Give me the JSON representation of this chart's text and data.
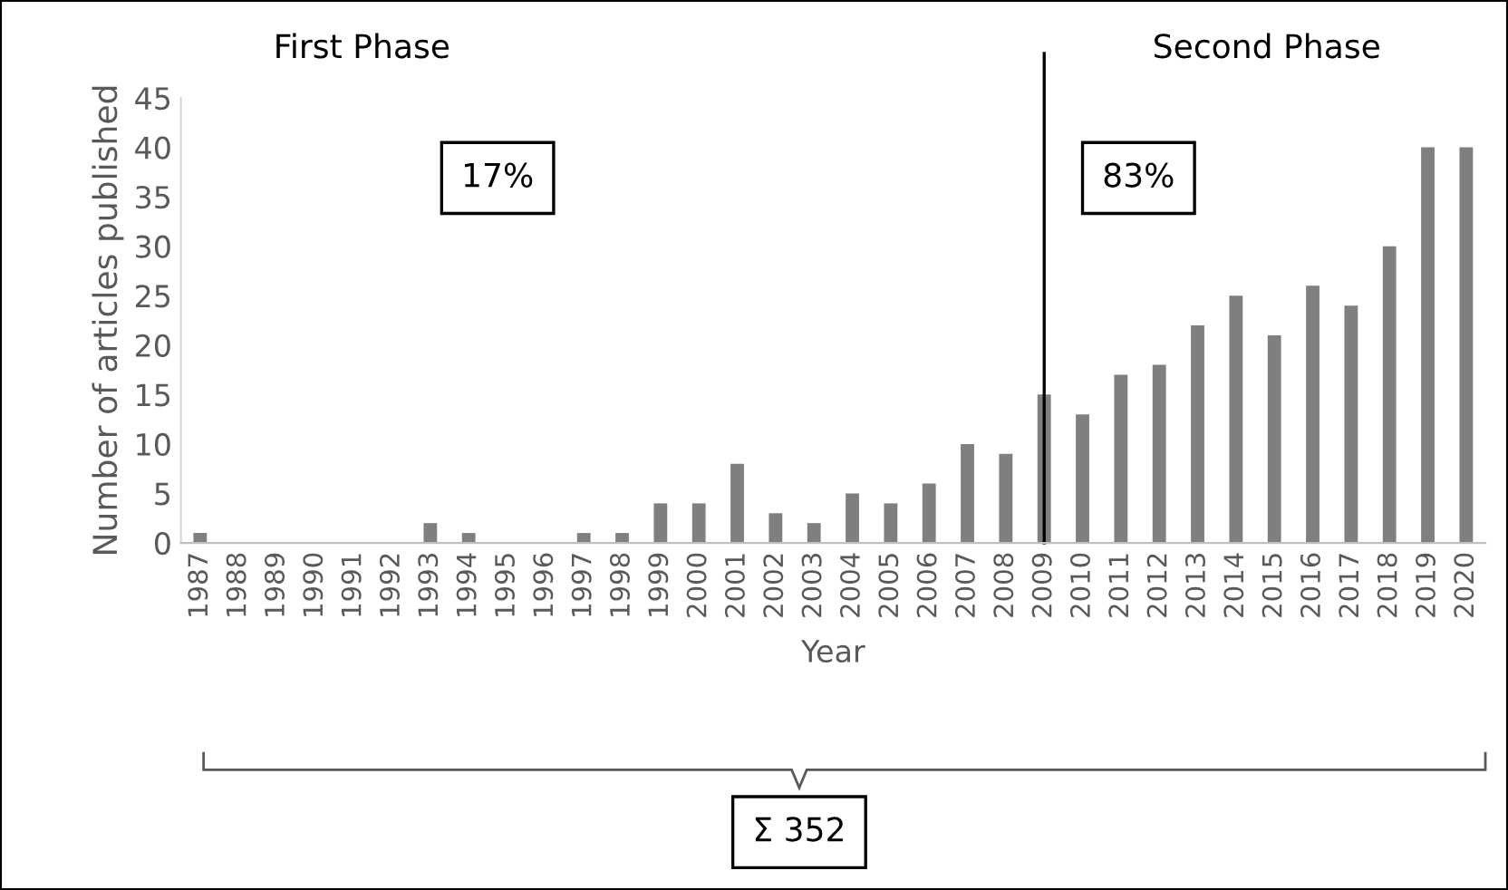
{
  "chart_data": {
    "type": "bar",
    "xlabel": "Year",
    "ylabel": "Number of articles published",
    "categories": [
      "1987",
      "1988",
      "1989",
      "1990",
      "1991",
      "1992",
      "1993",
      "1994",
      "1995",
      "1996",
      "1997",
      "1998",
      "1999",
      "2000",
      "2001",
      "2002",
      "2003",
      "2004",
      "2005",
      "2006",
      "2007",
      "2008",
      "2009",
      "2010",
      "2011",
      "2012",
      "2013",
      "2014",
      "2015",
      "2016",
      "2017",
      "2018",
      "2019",
      "2020"
    ],
    "values": [
      1,
      0,
      0,
      0,
      0,
      0,
      2,
      1,
      0,
      0,
      1,
      1,
      4,
      4,
      8,
      3,
      2,
      5,
      4,
      6,
      10,
      9,
      15,
      13,
      17,
      18,
      22,
      25,
      21,
      26,
      24,
      30,
      40,
      40
    ],
    "color": "#7f7f7f",
    "ylim": [
      0,
      45
    ],
    "yticks": [
      0,
      5,
      10,
      15,
      20,
      25,
      30,
      35,
      40,
      45
    ],
    "grid": false,
    "legend": false,
    "ref_lines": [
      {
        "axis": "x",
        "value": "2009",
        "color": "#000000"
      }
    ],
    "annotations": [
      "First Phase",
      "Second Phase",
      "17%",
      "83%",
      "Σ 352"
    ]
  }
}
